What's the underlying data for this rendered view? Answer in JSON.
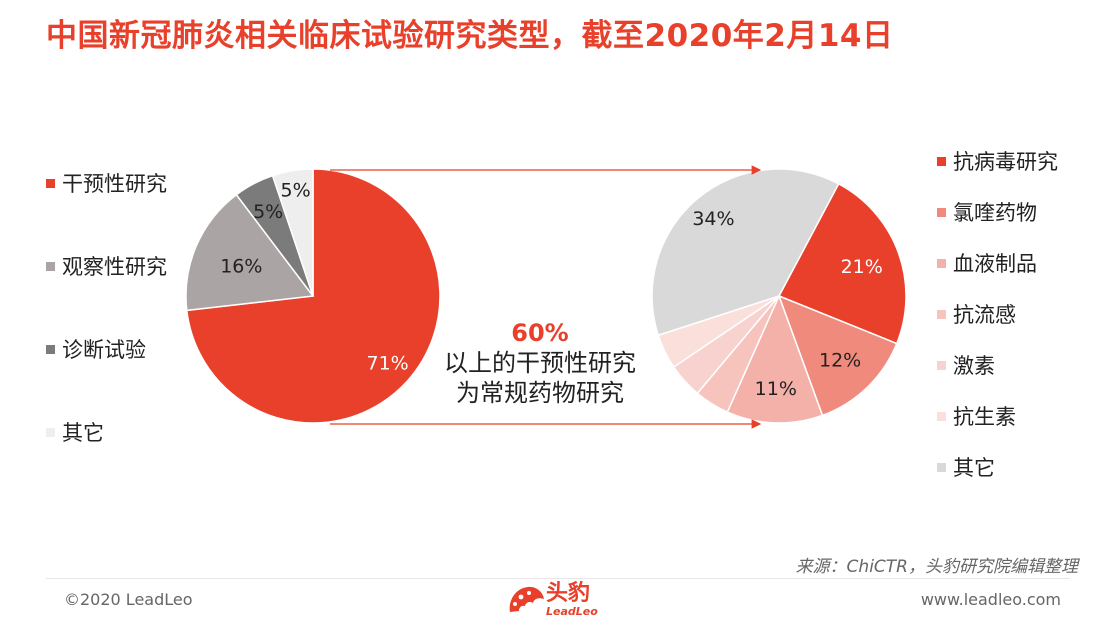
{
  "title": "中国新冠肺炎相关临床试验研究类型，截至2020年2月14日",
  "chart_data": [
    {
      "type": "pie",
      "labels": [
        "干预性研究",
        "观察性研究",
        "诊断试验",
        "其它"
      ],
      "values": [
        71,
        16,
        5,
        5
      ],
      "value_labels": [
        "71%",
        "16%",
        "5%",
        "5%"
      ],
      "colors": [
        "#e8402a",
        "#aaa4a4",
        "#7b7b7b",
        "#eeeeee"
      ],
      "legend_position": "left"
    },
    {
      "type": "pie",
      "labels": [
        "抗病毒研究",
        "氯喹药物",
        "血液制品",
        "抗流感",
        "激素",
        "抗生素",
        "其它"
      ],
      "values": [
        21,
        12,
        11,
        4,
        4,
        4,
        34
      ],
      "value_labels": [
        "21%",
        "12%",
        "11%",
        "",
        "",
        "",
        "34%"
      ],
      "colors": [
        "#e8402a",
        "#ef8a7d",
        "#f4b1a9",
        "#f6c3bd",
        "#f8d2ce",
        "#fadfdb",
        "#d9d9d9"
      ],
      "legend_position": "right"
    }
  ],
  "annotation": {
    "percent": "60%",
    "line1": "以上的干预性研究",
    "line2": "为常规药物研究"
  },
  "source": "来源：ChiCTR，头豹研究院编辑整理",
  "footer": {
    "copyright": "©2020 LeadLeo",
    "brand_name": "头豹",
    "brand_sub": "LeadLeo",
    "website": "www.leadleo.com"
  }
}
